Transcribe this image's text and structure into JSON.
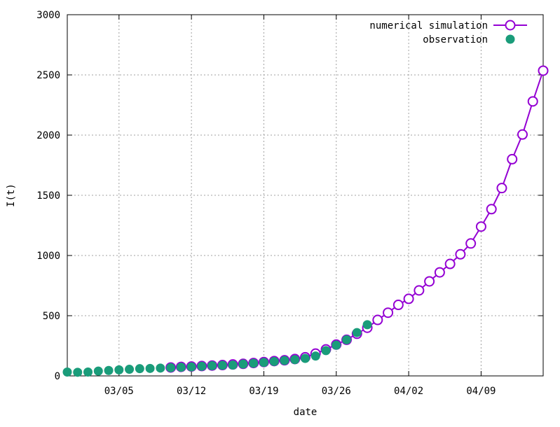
{
  "chart_data": {
    "type": "scatter",
    "title": "",
    "xlabel": "date",
    "ylabel": "I(t)",
    "ylim": [
      0,
      3000
    ],
    "xlim": [
      "2020-02-29",
      "2020-04-15"
    ],
    "yticks": [
      0,
      500,
      1000,
      1500,
      2000,
      2500,
      3000
    ],
    "xticks": [
      {
        "date": "2020-03-05",
        "label": "03/05"
      },
      {
        "date": "2020-03-12",
        "label": "03/12"
      },
      {
        "date": "2020-03-19",
        "label": "03/19"
      },
      {
        "date": "2020-03-26",
        "label": "03/26"
      },
      {
        "date": "2020-04-02",
        "label": "04/02"
      },
      {
        "date": "2020-04-09",
        "label": "04/09"
      }
    ],
    "grid": true,
    "legend_position": "top-right",
    "series": [
      {
        "name": "numerical simulation",
        "style": "line with open circles",
        "color": "#9400d3",
        "points": [
          {
            "x": "2020-03-10",
            "y": 70
          },
          {
            "x": "2020-03-11",
            "y": 75
          },
          {
            "x": "2020-03-12",
            "y": 78
          },
          {
            "x": "2020-03-13",
            "y": 82
          },
          {
            "x": "2020-03-14",
            "y": 86
          },
          {
            "x": "2020-03-15",
            "y": 90
          },
          {
            "x": "2020-03-16",
            "y": 95
          },
          {
            "x": "2020-03-17",
            "y": 100
          },
          {
            "x": "2020-03-18",
            "y": 107
          },
          {
            "x": "2020-03-19",
            "y": 115
          },
          {
            "x": "2020-03-20",
            "y": 123
          },
          {
            "x": "2020-03-21",
            "y": 130
          },
          {
            "x": "2020-03-22",
            "y": 140
          },
          {
            "x": "2020-03-23",
            "y": 155
          },
          {
            "x": "2020-03-24",
            "y": 185
          },
          {
            "x": "2020-03-25",
            "y": 220
          },
          {
            "x": "2020-03-26",
            "y": 260
          },
          {
            "x": "2020-03-27",
            "y": 300
          },
          {
            "x": "2020-03-28",
            "y": 350
          },
          {
            "x": "2020-03-29",
            "y": 400
          },
          {
            "x": "2020-03-30",
            "y": 465
          },
          {
            "x": "2020-03-31",
            "y": 525
          },
          {
            "x": "2020-04-01",
            "y": 590
          },
          {
            "x": "2020-04-02",
            "y": 640
          },
          {
            "x": "2020-04-03",
            "y": 710
          },
          {
            "x": "2020-04-04",
            "y": 785
          },
          {
            "x": "2020-04-05",
            "y": 860
          },
          {
            "x": "2020-04-06",
            "y": 930
          },
          {
            "x": "2020-04-07",
            "y": 1010
          },
          {
            "x": "2020-04-08",
            "y": 1100
          },
          {
            "x": "2020-04-09",
            "y": 1240
          },
          {
            "x": "2020-04-10",
            "y": 1385
          },
          {
            "x": "2020-04-11",
            "y": 1560
          },
          {
            "x": "2020-04-12",
            "y": 1800
          },
          {
            "x": "2020-04-13",
            "y": 2005
          },
          {
            "x": "2020-04-14",
            "y": 2280
          },
          {
            "x": "2020-04-15",
            "y": 2535
          }
        ]
      },
      {
        "name": "observation",
        "style": "filled circles",
        "color": "#1a9c7a",
        "points": [
          {
            "x": "2020-02-29",
            "y": 32
          },
          {
            "x": "2020-03-01",
            "y": 30
          },
          {
            "x": "2020-03-02",
            "y": 32
          },
          {
            "x": "2020-03-03",
            "y": 40
          },
          {
            "x": "2020-03-04",
            "y": 45
          },
          {
            "x": "2020-03-05",
            "y": 50
          },
          {
            "x": "2020-03-06",
            "y": 55
          },
          {
            "x": "2020-03-07",
            "y": 60
          },
          {
            "x": "2020-03-08",
            "y": 62
          },
          {
            "x": "2020-03-09",
            "y": 65
          },
          {
            "x": "2020-03-10",
            "y": 68
          },
          {
            "x": "2020-03-11",
            "y": 72
          },
          {
            "x": "2020-03-12",
            "y": 75
          },
          {
            "x": "2020-03-13",
            "y": 80
          },
          {
            "x": "2020-03-14",
            "y": 85
          },
          {
            "x": "2020-03-15",
            "y": 88
          },
          {
            "x": "2020-03-16",
            "y": 90
          },
          {
            "x": "2020-03-17",
            "y": 98
          },
          {
            "x": "2020-03-18",
            "y": 105
          },
          {
            "x": "2020-03-19",
            "y": 112
          },
          {
            "x": "2020-03-20",
            "y": 120
          },
          {
            "x": "2020-03-21",
            "y": 128
          },
          {
            "x": "2020-03-22",
            "y": 135
          },
          {
            "x": "2020-03-23",
            "y": 145
          },
          {
            "x": "2020-03-24",
            "y": 165
          },
          {
            "x": "2020-03-25",
            "y": 210
          },
          {
            "x": "2020-03-26",
            "y": 255
          },
          {
            "x": "2020-03-27",
            "y": 300
          },
          {
            "x": "2020-03-28",
            "y": 360
          },
          {
            "x": "2020-03-29",
            "y": 425
          }
        ]
      }
    ]
  }
}
